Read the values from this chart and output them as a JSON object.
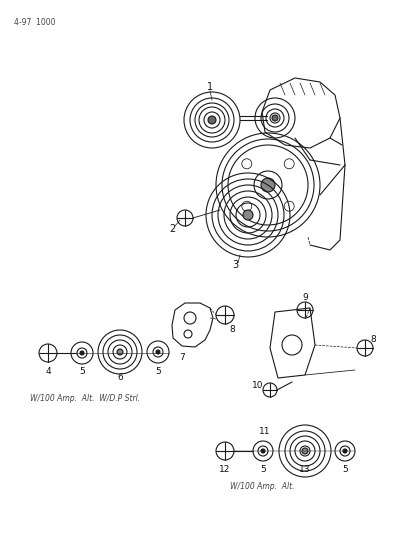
{
  "bg_color": "#ffffff",
  "line_color": "#1a1a1a",
  "fig_width": 4.1,
  "fig_height": 5.33,
  "dpi": 100,
  "page_ref": "4-97  1000",
  "caption1": "W/100 Amp.  Alt.  W/D.P Strl.",
  "caption2": "W/100 Amp.  Alt.",
  "lw": 0.8
}
